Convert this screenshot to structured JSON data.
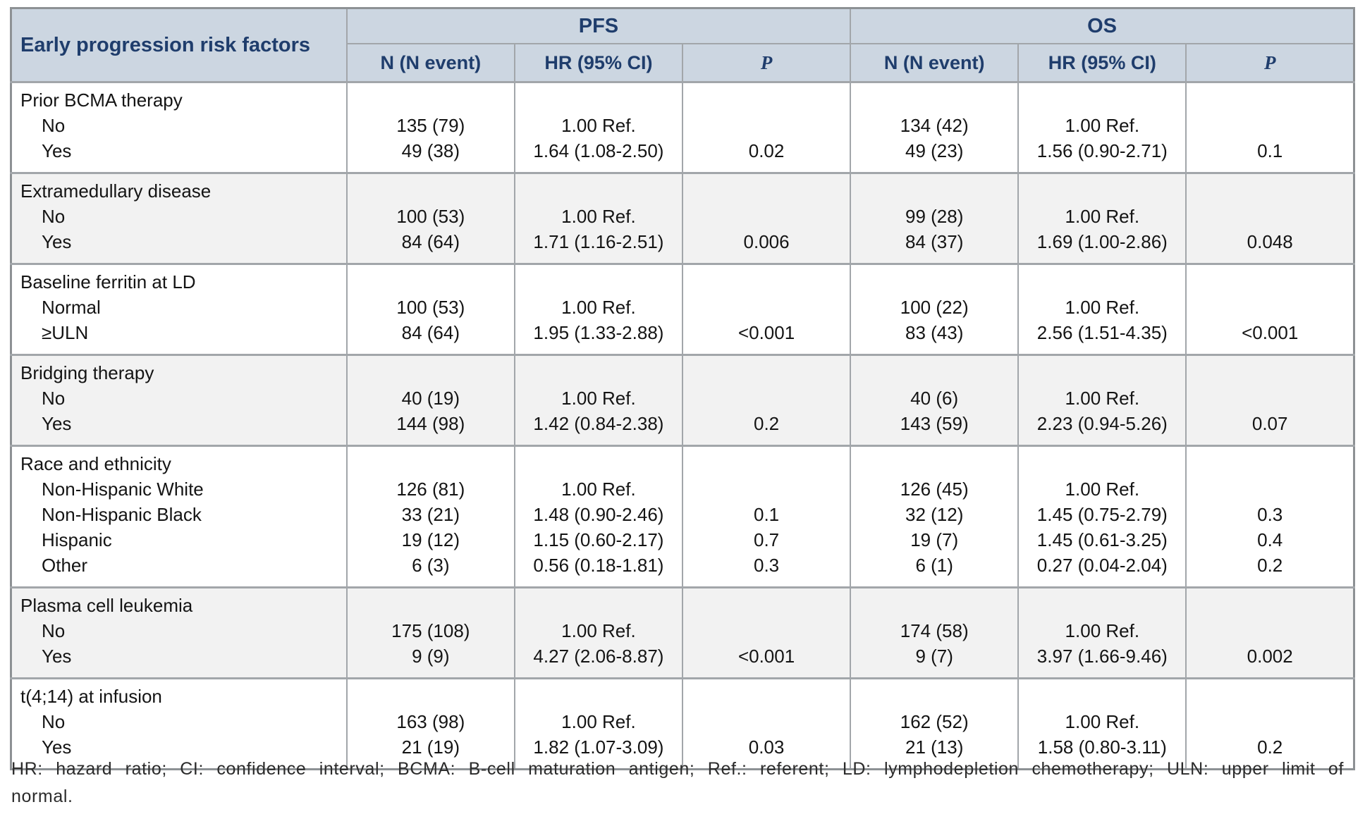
{
  "table": {
    "title_column_header": "Early progression risk factors",
    "groups": [
      {
        "label": "PFS",
        "subcolumns": [
          "N (N event)",
          "HR (95% CI)",
          "P"
        ]
      },
      {
        "label": "OS",
        "subcolumns": [
          "N (N event)",
          "HR (95% CI)",
          "P"
        ]
      }
    ],
    "sections": [
      {
        "label": "Prior BCMA therapy",
        "striped": false,
        "rows": [
          [
            "No",
            "135 (79)",
            "1.00 Ref.",
            "",
            "134 (42)",
            "1.00 Ref.",
            ""
          ],
          [
            "Yes",
            "49 (38)",
            "1.64 (1.08-2.50)",
            "0.02",
            "49 (23)",
            "1.56 (0.90-2.71)",
            "0.1"
          ]
        ]
      },
      {
        "label": "Extramedullary disease",
        "striped": true,
        "rows": [
          [
            "No",
            "100 (53)",
            "1.00 Ref.",
            "",
            "99 (28)",
            "1.00 Ref.",
            ""
          ],
          [
            "Yes",
            "84 (64)",
            "1.71 (1.16-2.51)",
            "0.006",
            "84 (37)",
            "1.69 (1.00-2.86)",
            "0.048"
          ]
        ]
      },
      {
        "label": "Baseline ferritin at LD",
        "striped": false,
        "rows": [
          [
            "Normal",
            "100 (53)",
            "1.00 Ref.",
            "",
            "100 (22)",
            "1.00 Ref.",
            ""
          ],
          [
            "≥ULN",
            "84 (64)",
            "1.95 (1.33-2.88)",
            "<0.001",
            "83 (43)",
            "2.56 (1.51-4.35)",
            "<0.001"
          ]
        ]
      },
      {
        "label": "Bridging therapy",
        "striped": true,
        "rows": [
          [
            "No",
            "40 (19)",
            "1.00 Ref.",
            "",
            "40 (6)",
            "1.00 Ref.",
            ""
          ],
          [
            "Yes",
            "144 (98)",
            "1.42 (0.84-2.38)",
            "0.2",
            "143 (59)",
            "2.23 (0.94-5.26)",
            "0.07"
          ]
        ]
      },
      {
        "label": "Race and ethnicity",
        "striped": false,
        "rows": [
          [
            "Non-Hispanic White",
            "126 (81)",
            "1.00 Ref.",
            "",
            "126 (45)",
            "1.00 Ref.",
            ""
          ],
          [
            "Non-Hispanic Black",
            "33 (21)",
            "1.48 (0.90-2.46)",
            "0.1",
            "32 (12)",
            "1.45 (0.75-2.79)",
            "0.3"
          ],
          [
            "Hispanic",
            "19 (12)",
            "1.15 (0.60-2.17)",
            "0.7",
            "19 (7)",
            "1.45 (0.61-3.25)",
            "0.4"
          ],
          [
            "Other",
            "6 (3)",
            "0.56 (0.18-1.81)",
            "0.3",
            "6 (1)",
            "0.27 (0.04-2.04)",
            "0.2"
          ]
        ]
      },
      {
        "label": "Plasma cell leukemia",
        "striped": true,
        "rows": [
          [
            "No",
            "175 (108)",
            "1.00 Ref.",
            "",
            "174 (58)",
            "1.00 Ref.",
            ""
          ],
          [
            "Yes",
            "9 (9)",
            "4.27 (2.06-8.87)",
            "<0.001",
            "9 (7)",
            "3.97 (1.66-9.46)",
            "0.002"
          ]
        ]
      },
      {
        "label": "t(4;14) at infusion",
        "striped": false,
        "rows": [
          [
            "No",
            "163 (98)",
            "1.00 Ref.",
            "",
            "162 (52)",
            "1.00 Ref.",
            ""
          ],
          [
            "Yes",
            "21 (19)",
            "1.82 (1.07-3.09)",
            "0.03",
            "21 (13)",
            "1.58 (0.80-3.11)",
            "0.2"
          ]
        ]
      }
    ]
  },
  "footnote": "HR: hazard ratio; CI: confidence interval; BCMA: B-cell maturation antigen; Ref.: referent; LD: lymphodepletion chemotherapy; ULN: upper limit of normal.",
  "colors": {
    "header_bg": "#ccd6e1",
    "header_text": "#1f3d6c",
    "stripe_bg": "#f2f2f2",
    "border": "#a2a6aa",
    "body_text": "#141414"
  }
}
